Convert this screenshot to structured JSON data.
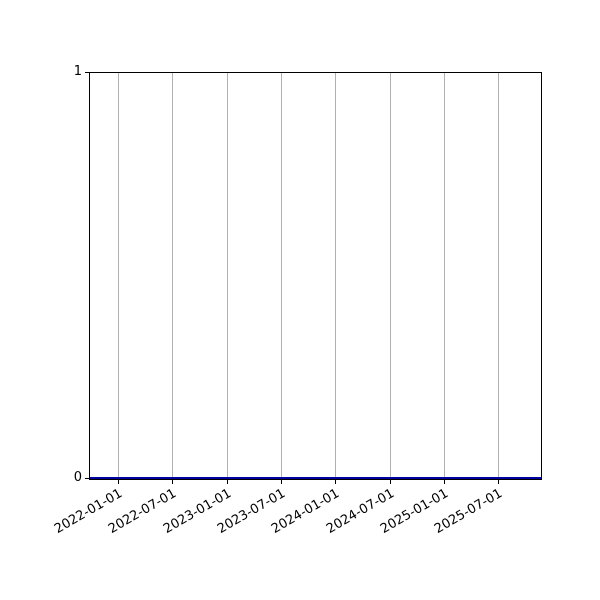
{
  "chart_data": {
    "type": "line",
    "title": "",
    "xlabel": "",
    "ylabel": "",
    "x_tick_labels": [
      "2022-01-01",
      "2022-07-01",
      "2023-01-01",
      "2023-07-01",
      "2024-01-01",
      "2024-07-01",
      "2025-01-01",
      "2025-07-01"
    ],
    "y_tick_labels": [
      "0",
      "1"
    ],
    "ylim": [
      0,
      1
    ],
    "grid": "vertical-only",
    "grid_color": "#b0b0b0",
    "spine_color": "#000000",
    "background_color": "#ffffff",
    "legend": "none",
    "series": [
      {
        "description": "flat horizontal line at y=0 spanning full x-range",
        "y_value": 0,
        "color": "#0000A0"
      }
    ]
  }
}
